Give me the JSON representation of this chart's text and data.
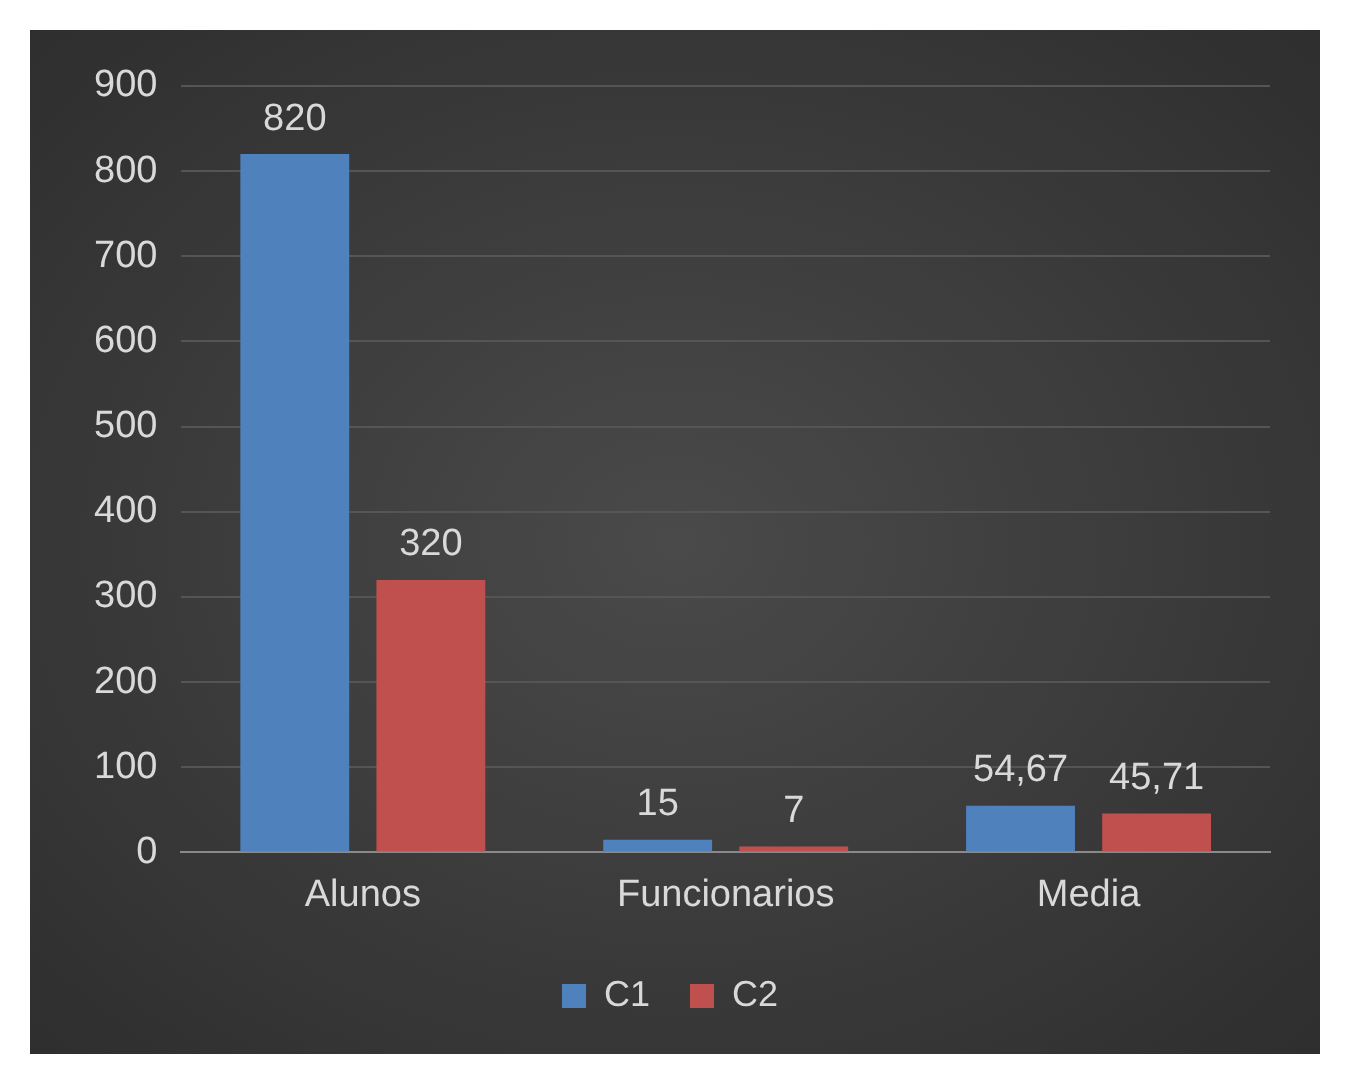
{
  "chart_data": {
    "type": "bar",
    "categories": [
      "Alunos",
      "Funcionarios",
      "Media"
    ],
    "series": [
      {
        "name": "C1",
        "color": "#4f81bd",
        "values": [
          820,
          15,
          54.67
        ],
        "value_labels": [
          "820",
          "15",
          "54,67"
        ]
      },
      {
        "name": "C2",
        "color": "#c0504d",
        "values": [
          320,
          7,
          45.71
        ],
        "value_labels": [
          "320",
          "7",
          "45,71"
        ]
      }
    ],
    "ylim": [
      0,
      900
    ],
    "yticks": [
      0,
      100,
      200,
      300,
      400,
      500,
      600,
      700,
      800,
      900
    ],
    "grid": "y",
    "legend": "bottom"
  }
}
